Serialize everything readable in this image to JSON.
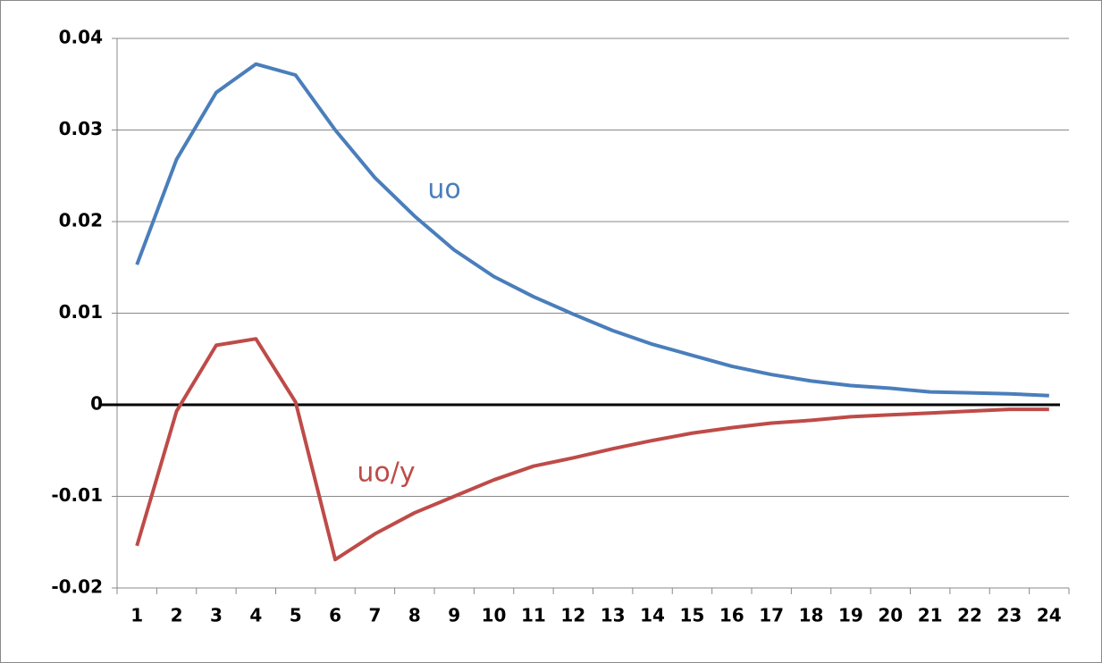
{
  "chart_data": {
    "type": "line",
    "categories": [
      1,
      2,
      3,
      4,
      5,
      6,
      7,
      8,
      9,
      10,
      11,
      12,
      13,
      14,
      15,
      16,
      17,
      18,
      19,
      20,
      21,
      22,
      23,
      24
    ],
    "series": [
      {
        "name": "uo",
        "color": "#4a7ebb",
        "values": [
          0.0153,
          0.0268,
          0.0341,
          0.0372,
          0.036,
          0.03,
          0.0248,
          0.0206,
          0.0169,
          0.014,
          0.0118,
          0.0099,
          0.0081,
          0.0066,
          0.0054,
          0.0042,
          0.0033,
          0.0026,
          0.0021,
          0.0018,
          0.0014,
          0.0013,
          0.0012,
          0.001
        ]
      },
      {
        "name": "uo/y",
        "color": "#be4b48",
        "values": [
          -0.0154,
          -0.0007,
          0.0065,
          0.0072,
          0.0003,
          -0.0169,
          -0.0141,
          -0.0118,
          -0.01,
          -0.0082,
          -0.0067,
          -0.0058,
          -0.0048,
          -0.0039,
          -0.0031,
          -0.0025,
          -0.002,
          -0.0017,
          -0.0013,
          -0.0011,
          -0.0009,
          -0.0007,
          -0.0005,
          -0.0005
        ]
      }
    ],
    "ylim": [
      -0.02,
      0.04
    ],
    "yticks": [
      -0.02,
      -0.01,
      0,
      0.01,
      0.02,
      0.03,
      0.04
    ],
    "grid": true
  }
}
